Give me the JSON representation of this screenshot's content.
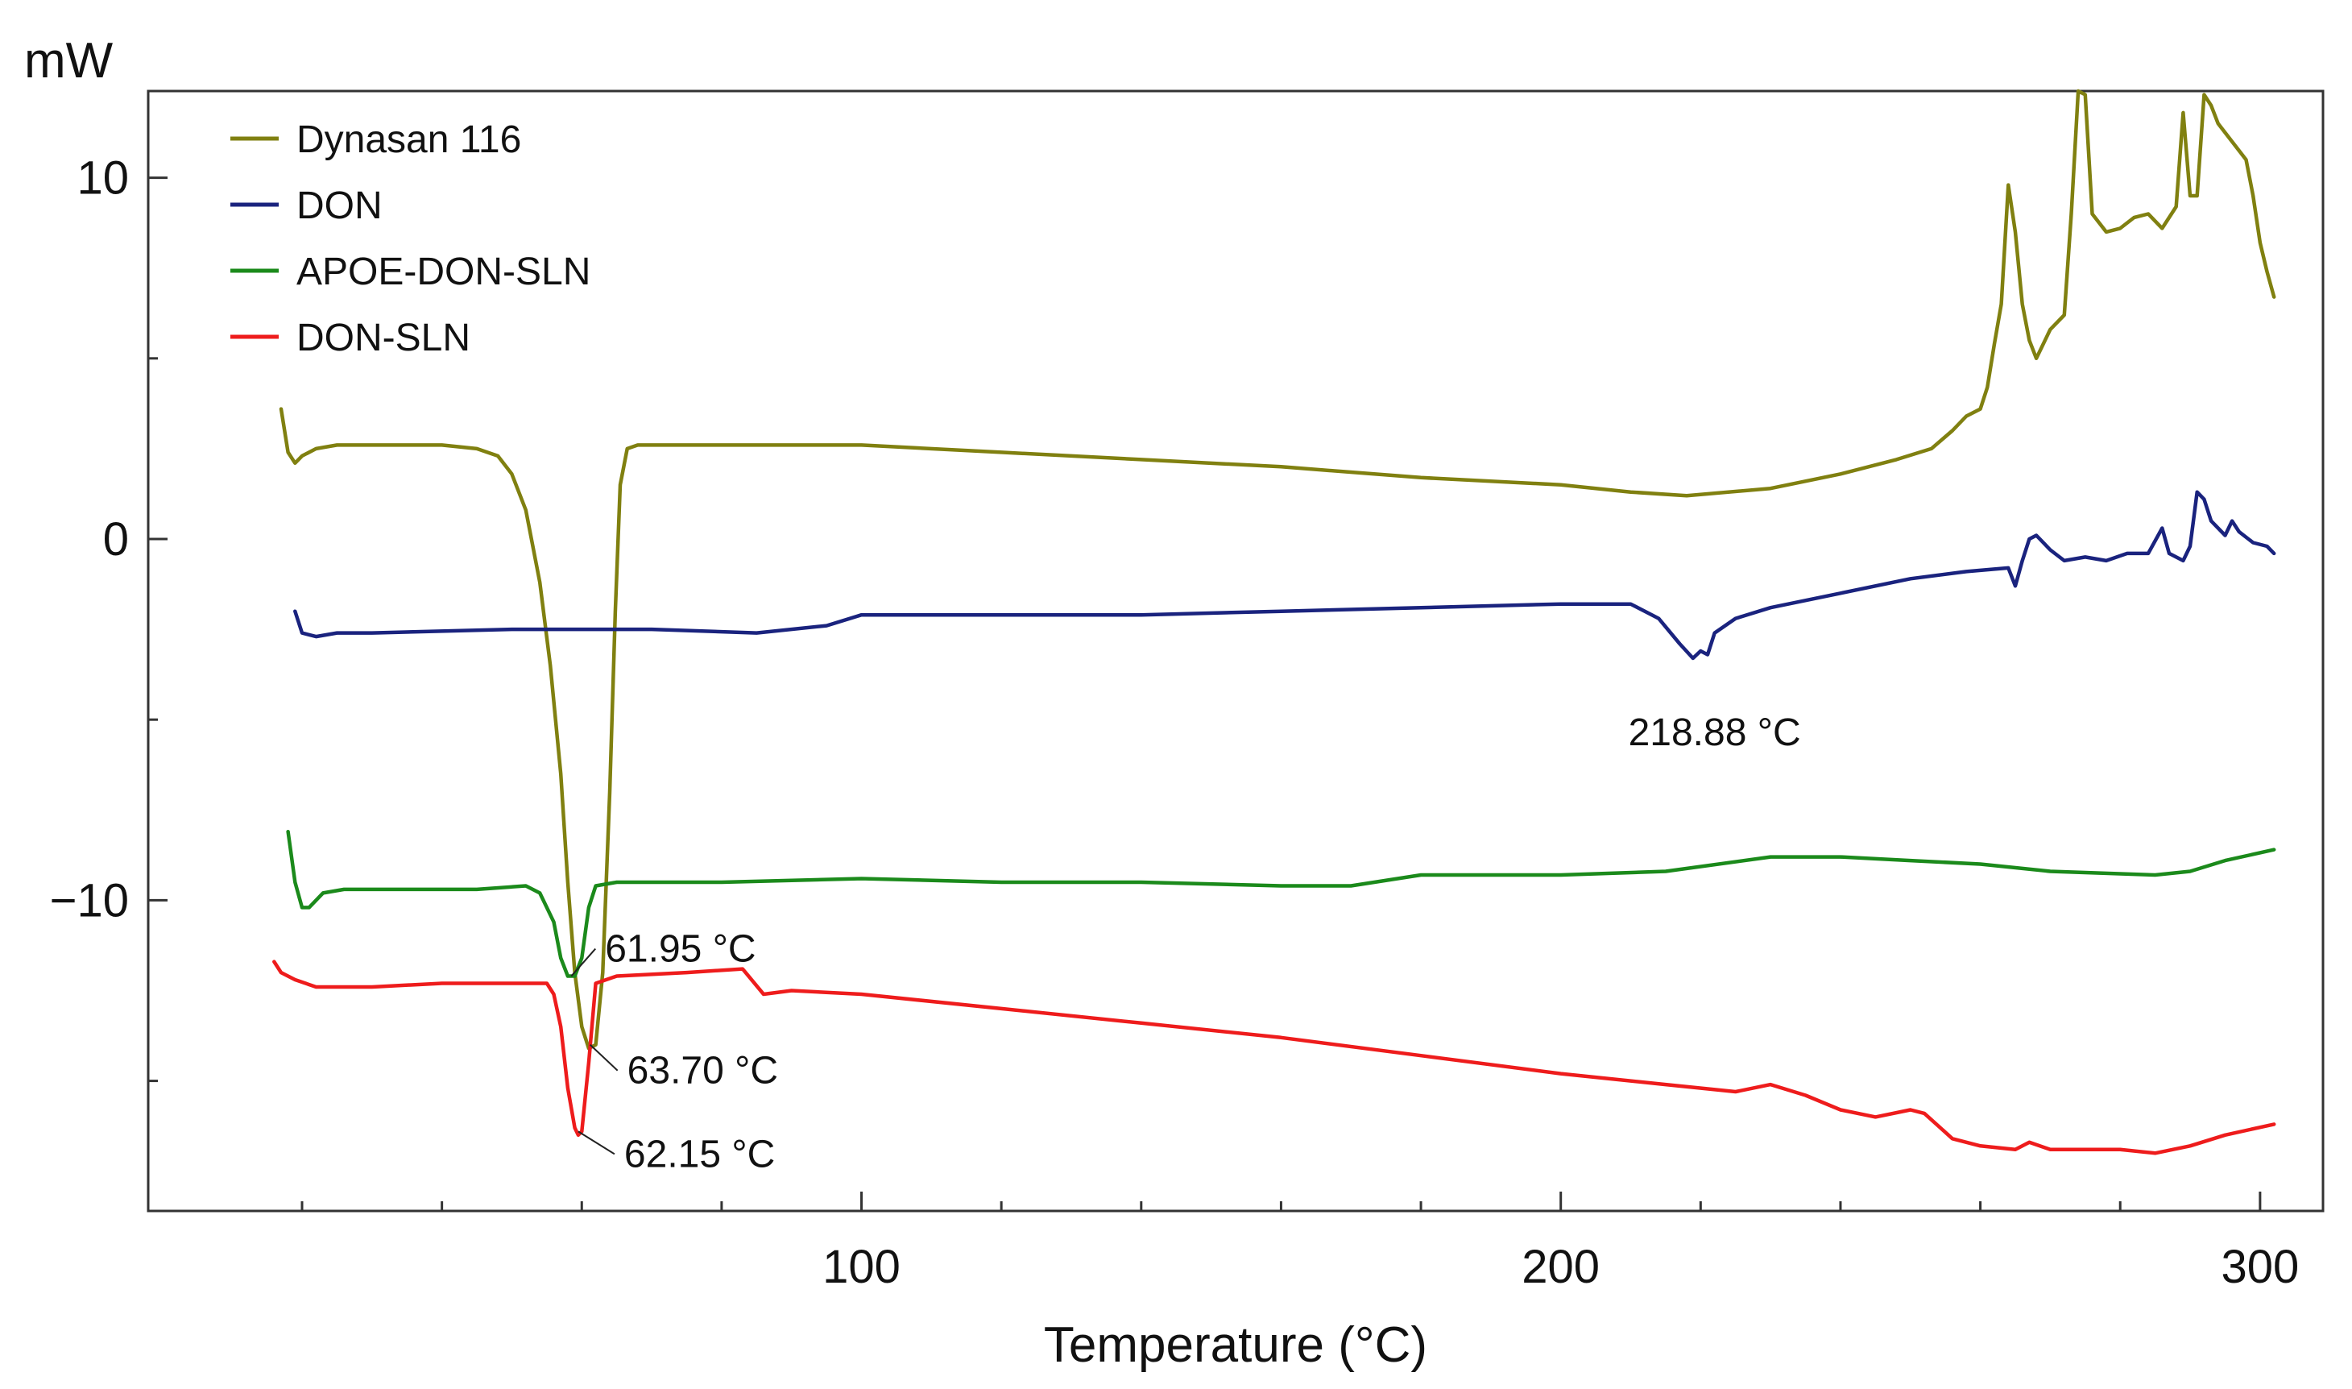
{
  "chart_data": {
    "type": "line",
    "title": "",
    "xlabel": "Temperature (°C)",
    "ylabel": "mW",
    "xlim": [
      -2,
      309
    ],
    "ylim": [
      -18.6,
      12.4
    ],
    "x_ticks": [
      100,
      200,
      300
    ],
    "x_tick_labels": [
      "100",
      "200",
      "300"
    ],
    "x_minor_ticks": [
      20,
      40,
      60,
      80,
      120,
      140,
      160,
      180,
      220,
      240,
      260,
      280
    ],
    "y_ticks": [
      -10,
      0,
      10
    ],
    "y_tick_labels": [
      "−10",
      "0",
      "10"
    ],
    "y_minor_ticks": [
      -15,
      -5,
      5
    ],
    "grid": false,
    "legend_position": "top-left",
    "series": [
      {
        "name": "Dynasan 116",
        "color": "#808010",
        "points": [
          [
            17,
            3.6
          ],
          [
            18,
            2.4
          ],
          [
            19,
            2.1
          ],
          [
            20,
            2.3
          ],
          [
            22,
            2.5
          ],
          [
            25,
            2.6
          ],
          [
            30,
            2.6
          ],
          [
            40,
            2.6
          ],
          [
            45,
            2.5
          ],
          [
            48,
            2.3
          ],
          [
            50,
            1.8
          ],
          [
            52,
            0.8
          ],
          [
            54,
            -1.2
          ],
          [
            55.5,
            -3.5
          ],
          [
            57,
            -6.5
          ],
          [
            58,
            -9.5
          ],
          [
            59,
            -12
          ],
          [
            60,
            -13.5
          ],
          [
            61,
            -14.1
          ],
          [
            62,
            -14
          ],
          [
            63,
            -12
          ],
          [
            64,
            -7
          ],
          [
            64.8,
            -2
          ],
          [
            65.5,
            1.5
          ],
          [
            66.5,
            2.5
          ],
          [
            68,
            2.6
          ],
          [
            80,
            2.6
          ],
          [
            100,
            2.6
          ],
          [
            120,
            2.4
          ],
          [
            140,
            2.2
          ],
          [
            160,
            2.0
          ],
          [
            180,
            1.7
          ],
          [
            200,
            1.5
          ],
          [
            210,
            1.3
          ],
          [
            218,
            1.2
          ],
          [
            230,
            1.4
          ],
          [
            240,
            1.8
          ],
          [
            248,
            2.2
          ],
          [
            253,
            2.5
          ],
          [
            256,
            3.0
          ],
          [
            258,
            3.4
          ],
          [
            260,
            3.6
          ],
          [
            261,
            4.2
          ],
          [
            262,
            5.4
          ],
          [
            263,
            6.5
          ],
          [
            264,
            9.8
          ],
          [
            265,
            8.5
          ],
          [
            266,
            6.5
          ],
          [
            267,
            5.5
          ],
          [
            268,
            5.0
          ],
          [
            270,
            5.8
          ],
          [
            272,
            6.2
          ],
          [
            273,
            9.0
          ],
          [
            274,
            12.4
          ],
          [
            275,
            12.3
          ],
          [
            276,
            9.0
          ],
          [
            278,
            8.5
          ],
          [
            280,
            8.6
          ],
          [
            282,
            8.9
          ],
          [
            284,
            9.0
          ],
          [
            286,
            8.6
          ],
          [
            288,
            9.2
          ],
          [
            289,
            11.8
          ],
          [
            290,
            9.5
          ],
          [
            291,
            9.5
          ],
          [
            292,
            12.3
          ],
          [
            293,
            12.0
          ],
          [
            294,
            11.5
          ],
          [
            296,
            11.0
          ],
          [
            298,
            10.5
          ],
          [
            299,
            9.5
          ],
          [
            300,
            8.2
          ],
          [
            301,
            7.4
          ],
          [
            302,
            6.7
          ]
        ]
      },
      {
        "name": "DON",
        "color": "#1a237e",
        "points": [
          [
            19,
            -2.0
          ],
          [
            20,
            -2.6
          ],
          [
            22,
            -2.7
          ],
          [
            25,
            -2.6
          ],
          [
            30,
            -2.6
          ],
          [
            50,
            -2.5
          ],
          [
            70,
            -2.5
          ],
          [
            85,
            -2.6
          ],
          [
            95,
            -2.4
          ],
          [
            100,
            -2.1
          ],
          [
            120,
            -2.1
          ],
          [
            140,
            -2.1
          ],
          [
            160,
            -2.0
          ],
          [
            180,
            -1.9
          ],
          [
            200,
            -1.8
          ],
          [
            210,
            -1.8
          ],
          [
            214,
            -2.2
          ],
          [
            217,
            -2.9
          ],
          [
            218.9,
            -3.3
          ],
          [
            220,
            -3.1
          ],
          [
            221,
            -3.2
          ],
          [
            222,
            -2.6
          ],
          [
            225,
            -2.2
          ],
          [
            230,
            -1.9
          ],
          [
            240,
            -1.5
          ],
          [
            250,
            -1.1
          ],
          [
            258,
            -0.9
          ],
          [
            264,
            -0.8
          ],
          [
            265,
            -1.3
          ],
          [
            266,
            -0.6
          ],
          [
            267,
            0
          ],
          [
            268,
            0.1
          ],
          [
            270,
            -0.3
          ],
          [
            272,
            -0.6
          ],
          [
            275,
            -0.5
          ],
          [
            278,
            -0.6
          ],
          [
            281,
            -0.4
          ],
          [
            284,
            -0.4
          ],
          [
            286,
            0.3
          ],
          [
            287,
            -0.4
          ],
          [
            289,
            -0.6
          ],
          [
            290,
            -0.2
          ],
          [
            291,
            1.3
          ],
          [
            292,
            1.1
          ],
          [
            293,
            0.5
          ],
          [
            295,
            0.1
          ],
          [
            296,
            0.5
          ],
          [
            297,
            0.2
          ],
          [
            299,
            -0.1
          ],
          [
            301,
            -0.2
          ],
          [
            302,
            -0.4
          ]
        ]
      },
      {
        "name": "APOE-DON-SLN",
        "color": "#1b8a1b",
        "points": [
          [
            18,
            -8.1
          ],
          [
            19,
            -9.5
          ],
          [
            20,
            -10.2
          ],
          [
            21,
            -10.2
          ],
          [
            23,
            -9.8
          ],
          [
            26,
            -9.7
          ],
          [
            35,
            -9.7
          ],
          [
            45,
            -9.7
          ],
          [
            52,
            -9.6
          ],
          [
            54,
            -9.8
          ],
          [
            56,
            -10.6
          ],
          [
            57,
            -11.6
          ],
          [
            58,
            -12.1
          ],
          [
            59,
            -12.1
          ],
          [
            60,
            -11.6
          ],
          [
            61,
            -10.2
          ],
          [
            62,
            -9.6
          ],
          [
            65,
            -9.5
          ],
          [
            80,
            -9.5
          ],
          [
            100,
            -9.4
          ],
          [
            120,
            -9.5
          ],
          [
            140,
            -9.5
          ],
          [
            160,
            -9.6
          ],
          [
            170,
            -9.6
          ],
          [
            180,
            -9.3
          ],
          [
            200,
            -9.3
          ],
          [
            215,
            -9.2
          ],
          [
            230,
            -8.8
          ],
          [
            240,
            -8.8
          ],
          [
            250,
            -8.9
          ],
          [
            260,
            -9.0
          ],
          [
            270,
            -9.2
          ],
          [
            285,
            -9.3
          ],
          [
            290,
            -9.2
          ],
          [
            295,
            -8.9
          ],
          [
            302,
            -8.6
          ]
        ]
      },
      {
        "name": "DON-SLN",
        "color": "#ee1c1c",
        "points": [
          [
            16,
            -11.7
          ],
          [
            17,
            -12.0
          ],
          [
            19,
            -12.2
          ],
          [
            22,
            -12.4
          ],
          [
            30,
            -12.4
          ],
          [
            40,
            -12.3
          ],
          [
            50,
            -12.3
          ],
          [
            55,
            -12.3
          ],
          [
            56,
            -12.6
          ],
          [
            57,
            -13.5
          ],
          [
            58,
            -15.2
          ],
          [
            59,
            -16.3
          ],
          [
            59.5,
            -16.5
          ],
          [
            60,
            -16.4
          ],
          [
            61,
            -14.5
          ],
          [
            62,
            -12.3
          ],
          [
            65,
            -12.1
          ],
          [
            75,
            -12.0
          ],
          [
            83,
            -11.9
          ],
          [
            86,
            -12.6
          ],
          [
            90,
            -12.5
          ],
          [
            100,
            -12.6
          ],
          [
            120,
            -13.0
          ],
          [
            140,
            -13.4
          ],
          [
            160,
            -13.8
          ],
          [
            180,
            -14.3
          ],
          [
            200,
            -14.8
          ],
          [
            215,
            -15.1
          ],
          [
            225,
            -15.3
          ],
          [
            230,
            -15.1
          ],
          [
            235,
            -15.4
          ],
          [
            240,
            -15.8
          ],
          [
            245,
            -16.0
          ],
          [
            250,
            -15.8
          ],
          [
            252,
            -15.9
          ],
          [
            256,
            -16.6
          ],
          [
            260,
            -16.8
          ],
          [
            265,
            -16.9
          ],
          [
            267,
            -16.7
          ],
          [
            270,
            -16.9
          ],
          [
            275,
            -16.9
          ],
          [
            280,
            -16.9
          ],
          [
            285,
            -17.0
          ],
          [
            290,
            -16.8
          ],
          [
            295,
            -16.5
          ],
          [
            302,
            -16.2
          ]
        ]
      }
    ],
    "annotations": [
      {
        "text": "218.88 °C",
        "x": 218.88,
        "y": -3.3
      },
      {
        "text": "61.95 °C",
        "x": 58.5,
        "y": -12.1
      },
      {
        "text": "63.70 °C",
        "x": 61.2,
        "y": -14.0
      },
      {
        "text": "62.15 °C",
        "x": 59.5,
        "y": -16.4
      }
    ]
  }
}
